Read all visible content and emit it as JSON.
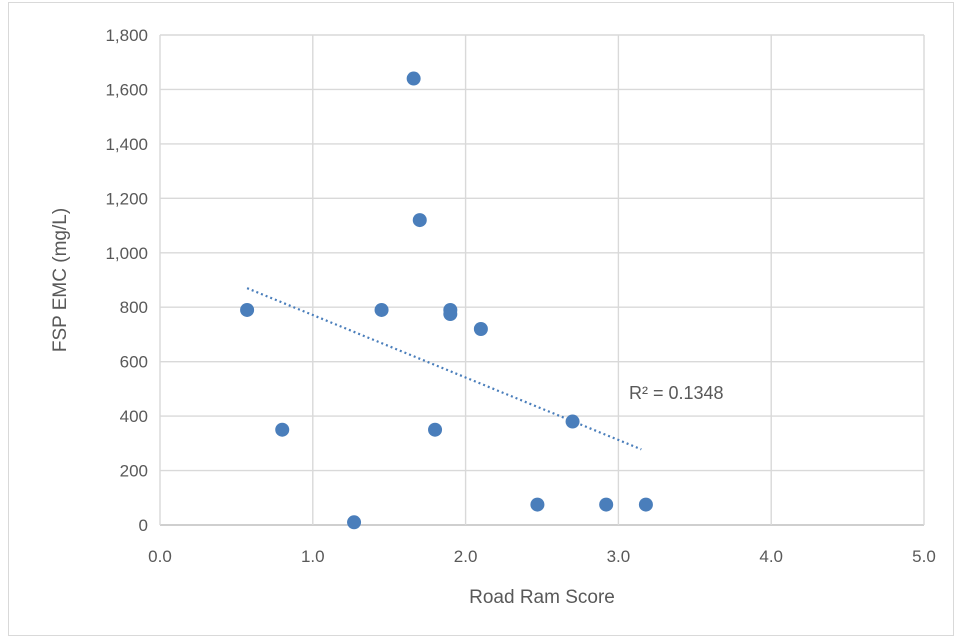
{
  "chart_data": {
    "type": "scatter",
    "title": "",
    "xlabel": "Road Ram Score",
    "ylabel": "FSP EMC (mg/L)",
    "xlim": [
      0,
      5
    ],
    "ylim": [
      0,
      1800
    ],
    "xticks": [
      0,
      1,
      2,
      3,
      4,
      5
    ],
    "xtick_labels": [
      "0.0",
      "1.0",
      "2.0",
      "3.0",
      "4.0",
      "5.0"
    ],
    "yticks": [
      0,
      200,
      400,
      600,
      800,
      1000,
      1200,
      1400,
      1600,
      1800
    ],
    "ytick_labels": [
      "0",
      "200",
      "400",
      "600",
      "800",
      "1,000",
      "1,200",
      "1,400",
      "1,600",
      "1,800"
    ],
    "grid": true,
    "series": [
      {
        "color": "#4a7ebb",
        "points": [
          {
            "x": 0.57,
            "y": 790
          },
          {
            "x": 0.8,
            "y": 350
          },
          {
            "x": 1.27,
            "y": 10
          },
          {
            "x": 1.45,
            "y": 790
          },
          {
            "x": 1.66,
            "y": 1640
          },
          {
            "x": 1.7,
            "y": 1120
          },
          {
            "x": 1.8,
            "y": 350
          },
          {
            "x": 1.9,
            "y": 790
          },
          {
            "x": 1.9,
            "y": 775
          },
          {
            "x": 2.1,
            "y": 720
          },
          {
            "x": 2.47,
            "y": 75
          },
          {
            "x": 2.7,
            "y": 380
          },
          {
            "x": 2.92,
            "y": 75
          },
          {
            "x": 3.18,
            "y": 75
          }
        ]
      }
    ],
    "trendline": {
      "type": "linear",
      "x_start": 0.57,
      "y_start": 870,
      "x_end": 3.15,
      "y_end": 278,
      "color": "#4a7ebb",
      "style": "dotted"
    },
    "annotation": {
      "text": "R² = 0.1348"
    }
  }
}
